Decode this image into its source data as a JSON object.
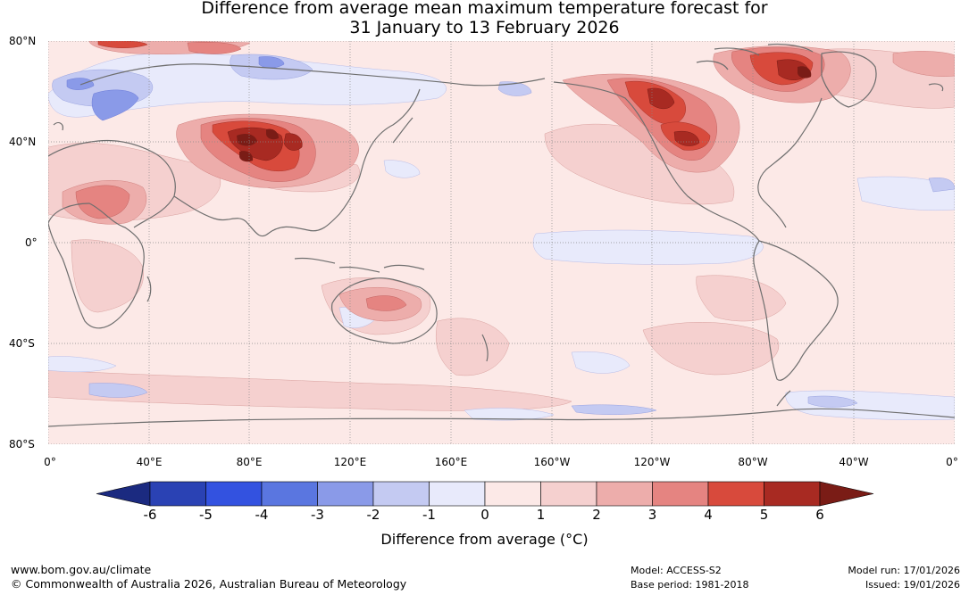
{
  "title": {
    "line1": "Difference from average mean maximum temperature forecast for",
    "line2": "31 January to 13 February 2026"
  },
  "map": {
    "lat_labels": [
      "80°N",
      "40°N",
      "0°",
      "40°S",
      "80°S"
    ],
    "lon_labels": [
      "0°",
      "40°E",
      "80°E",
      "120°E",
      "160°E",
      "160°W",
      "120°W",
      "80°W",
      "40°W",
      "0°"
    ],
    "features": {
      "warm_anomalies": [
        "Central Asia / Tibet",
        "Arabia / Sahara",
        "Western North America",
        "Eastern Canada",
        "Australia",
        "Southern Africa"
      ],
      "cool_anomalies": [
        "Northern Europe / Western Russia",
        "Central Siberia",
        "Southern Ocean",
        "Equatorial Pacific"
      ]
    }
  },
  "colorbar": {
    "ticks": [
      "-6",
      "-5",
      "-4",
      "-3",
      "-2",
      "-1",
      "0",
      "1",
      "2",
      "3",
      "4",
      "5",
      "6"
    ],
    "colors": [
      "#1b2a80",
      "#2a42b4",
      "#3352e0",
      "#5a76e0",
      "#8a9ae8",
      "#c4caf2",
      "#e8eafb",
      "#fce9e7",
      "#f5d0cf",
      "#edadab",
      "#e58481",
      "#d84a3c",
      "#a82a22",
      "#7a1c16"
    ],
    "label": "Difference from average (°C)"
  },
  "footer": {
    "url": "www.bom.gov.au/climate",
    "copyright": "© Commonwealth of Australia 2026, Australian Bureau of Meteorology",
    "model": "Model: ACCESS-S2",
    "base_period": "Base period: 1981-2018",
    "model_run": "Model run: 17/01/2026",
    "issued": "Issued: 19/01/2026"
  }
}
